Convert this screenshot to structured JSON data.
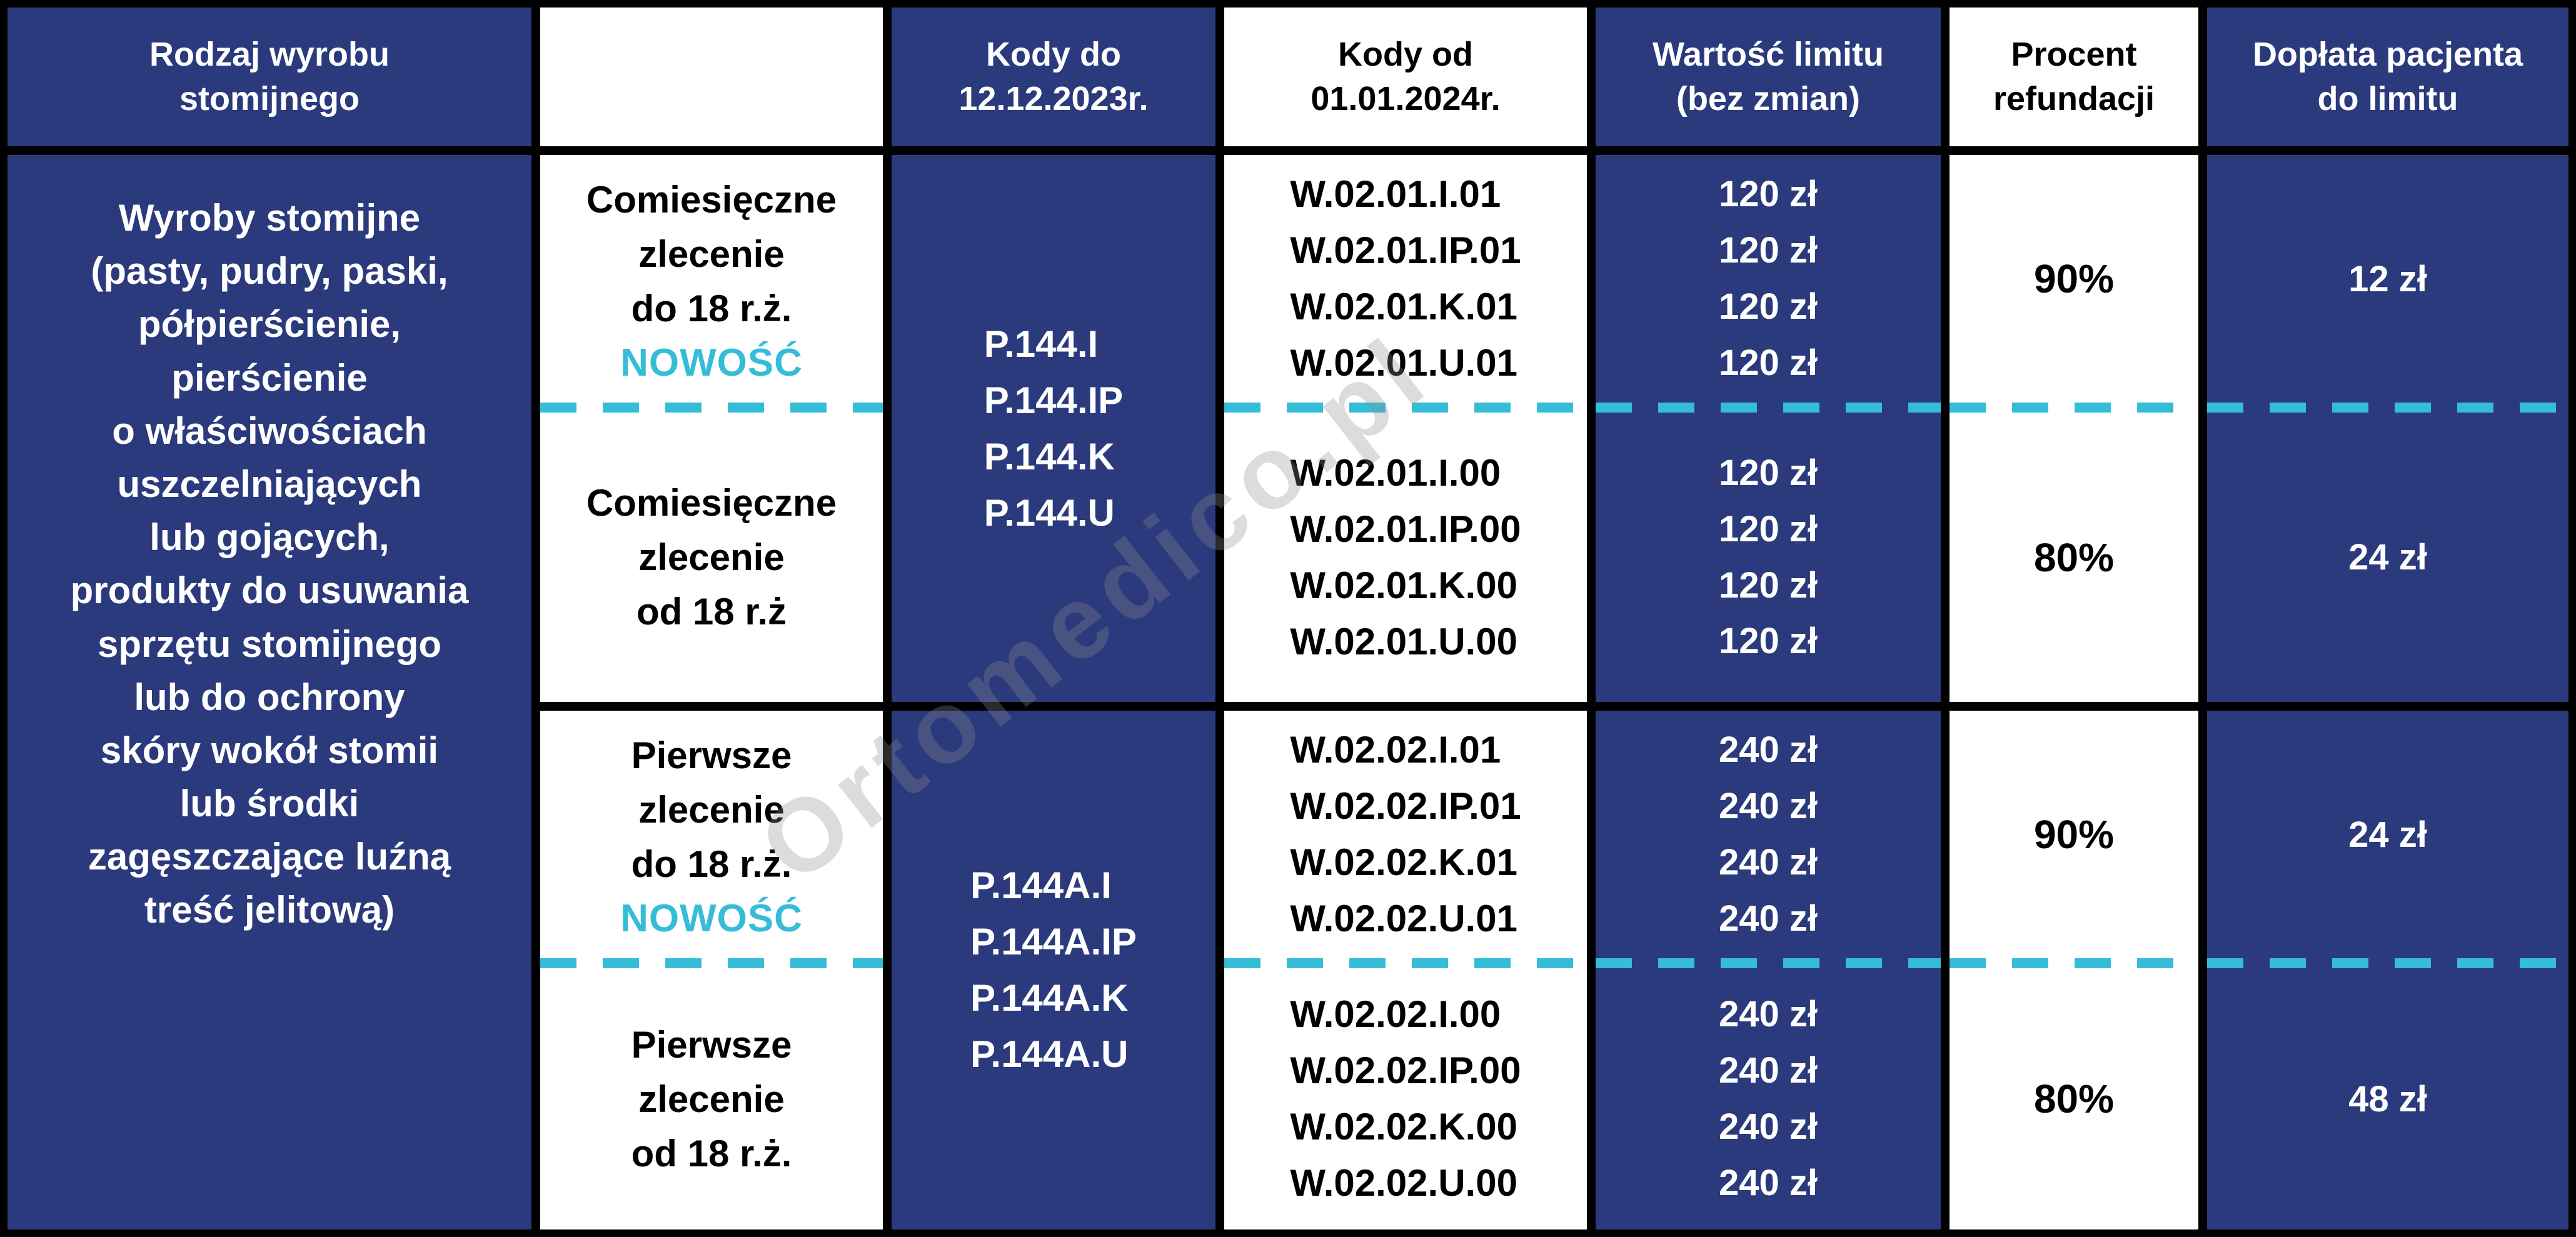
{
  "colors": {
    "navy": "#2b3a7c",
    "cyan_accent": "#35bdd8",
    "border": "#000000",
    "white": "#ffffff"
  },
  "watermark_text": "Ortomedico.pl",
  "header": {
    "type": "Rodzaj wyrobu\nstomijnego",
    "order": "",
    "codes_old": "Kody do\n12.12.2023r.",
    "codes_new": "Kody od\n01.01.2024r.",
    "limit": "Wartość limitu\n(bez zmian)",
    "refund": "Procent\nrefundacji",
    "copay": "Dopłata pacjenta\ndo limitu"
  },
  "product_type": "Wyroby stomijne\n(pasty, pudry, paski,\npółpierścienie,\npierścienie\no właściwościach\nuszczelniających\nlub gojących,\nprodukty do usuwania\nsprzętu stomijnego\nlub do ochrony\nskóry wokół stomii\nlub środki\nzagęszczające luźną\ntreść jelitową)",
  "groups": [
    {
      "codes_old": "P.144.I\nP.144.IP\nP.144.K\nP.144.U",
      "rows": [
        {
          "order": "Comiesięczne\nzlecenie\ndo 18 r.ż.",
          "badge": "NOWOŚĆ",
          "codes_new": "W.02.01.I.01\nW.02.01.IP.01\nW.02.01.K.01\nW.02.01.U.01",
          "limit": "120 zł\n120 zł\n120 zł\n120 zł",
          "refund": "90%",
          "copay": "12 zł"
        },
        {
          "order": "Comiesięczne\nzlecenie\nod 18 r.ż",
          "badge": "",
          "codes_new": "W.02.01.I.00\nW.02.01.IP.00\nW.02.01.K.00\nW.02.01.U.00",
          "limit": "120 zł\n120 zł\n120 zł\n120 zł",
          "refund": "80%",
          "copay": "24 zł"
        }
      ]
    },
    {
      "codes_old": "P.144A.I\nP.144A.IP\nP.144A.K\nP.144A.U",
      "rows": [
        {
          "order": "Pierwsze\nzlecenie\ndo 18 r.ż.",
          "badge": "NOWOŚĆ",
          "codes_new": "W.02.02.I.01\nW.02.02.IP.01\nW.02.02.K.01\nW.02.02.U.01",
          "limit": "240 zł\n240 zł\n240 zł\n240 zł",
          "refund": "90%",
          "copay": "24 zł"
        },
        {
          "order": "Pierwsze\nzlecenie\nod 18 r.ż.",
          "badge": "",
          "codes_new": "W.02.02.I.00\nW.02.02.IP.00\nW.02.02.K.00\nW.02.02.U.00",
          "limit": "240 zł\n240 zł\n240 zł\n240 zł",
          "refund": "80%",
          "copay": "48 zł"
        }
      ]
    }
  ]
}
